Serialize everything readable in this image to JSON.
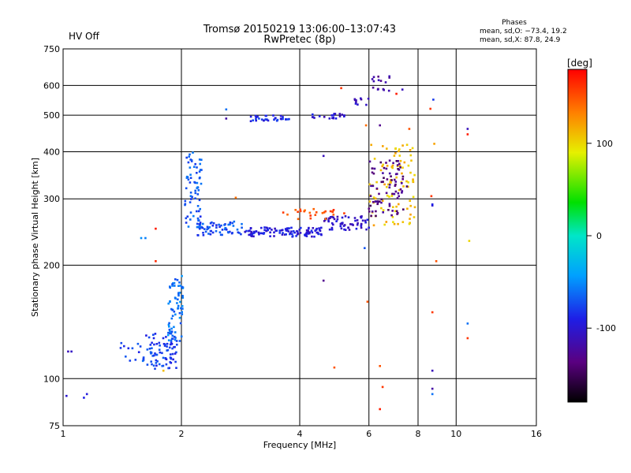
{
  "header": {
    "status": "HV Off",
    "status_color": "#cc0000",
    "title_line1": "Tromsø 20150219 13:06:00–13:07:43",
    "title_line2": "RwPretec (8p)"
  },
  "phase_info": {
    "heading": "Phases",
    "line_o": "mean, sd,O: −73.4, 19.2",
    "line_x": "mean, sd,X:  87.8, 24.9"
  },
  "chart_data": {
    "type": "scatter",
    "title": "",
    "xlabel": "Frequency [MHz]",
    "ylabel": "Stationary phase Virtual Height [km]",
    "x_scale": "log",
    "y_scale": "log",
    "xlim": [
      1,
      16
    ],
    "ylim": [
      75,
      750
    ],
    "x_ticks": [
      1,
      2,
      4,
      6,
      8,
      10,
      16
    ],
    "y_ticks": [
      75,
      100,
      200,
      300,
      400,
      500,
      600,
      750
    ],
    "x_gridlines": [
      2,
      4,
      6,
      8,
      10
    ],
    "y_gridlines": [
      100,
      200,
      300,
      400,
      500,
      600
    ],
    "grid": true,
    "colorbar": {
      "label": "[deg]",
      "min": -180,
      "max": 180,
      "ticks": [
        100,
        0,
        -100
      ],
      "legend_position": "right"
    },
    "clusters": [
      {
        "f": [
          1.6,
          1.95
        ],
        "h": [
          106,
          132
        ],
        "phase": -80,
        "count": 80
      },
      {
        "f": [
          1.85,
          2.02
        ],
        "h": [
          125,
          190
        ],
        "phase": -60,
        "count": 70
      },
      {
        "f": [
          1.4,
          1.62
        ],
        "h": [
          108,
          125
        ],
        "phase": -75,
        "count": 12
      },
      {
        "f": [
          2.04,
          2.25
        ],
        "h": [
          250,
          400
        ],
        "phase": -70,
        "count": 70
      },
      {
        "f": [
          2.2,
          2.9
        ],
        "h": [
          240,
          262
        ],
        "phase": -72,
        "count": 60
      },
      {
        "f": [
          2.9,
          4.6
        ],
        "h": [
          238,
          252
        ],
        "phase": -95,
        "count": 110
      },
      {
        "f": [
          4.6,
          6.0
        ],
        "h": [
          248,
          270
        ],
        "phase": -105,
        "count": 60
      },
      {
        "f": [
          3.6,
          5.2
        ],
        "h": [
          265,
          282
        ],
        "phase": 150,
        "count": 25
      },
      {
        "f": [
          3.0,
          3.8
        ],
        "h": [
          482,
          500
        ],
        "phase": -85,
        "count": 35
      },
      {
        "f": [
          4.2,
          5.2
        ],
        "h": [
          490,
          505
        ],
        "phase": -100,
        "count": 20
      },
      {
        "f": [
          5.5,
          6.0
        ],
        "h": [
          530,
          555
        ],
        "phase": -110,
        "count": 10
      },
      {
        "f": [
          6.0,
          7.9
        ],
        "h": [
          255,
          420
        ],
        "phase": 110,
        "count": 90
      },
      {
        "f": [
          6.0,
          7.5
        ],
        "h": [
          270,
          380
        ],
        "phase": -135,
        "count": 80
      },
      {
        "f": [
          6.1,
          6.8
        ],
        "h": [
          580,
          640
        ],
        "phase": -125,
        "count": 15
      }
    ],
    "points": [
      {
        "x": 1.03,
        "y": 118,
        "phase": -110
      },
      {
        "x": 1.05,
        "y": 118,
        "phase": -105
      },
      {
        "x": 1.02,
        "y": 90,
        "phase": -100
      },
      {
        "x": 1.15,
        "y": 91,
        "phase": -95
      },
      {
        "x": 1.13,
        "y": 89,
        "phase": -90
      },
      {
        "x": 1.62,
        "y": 236,
        "phase": -55
      },
      {
        "x": 1.58,
        "y": 236,
        "phase": -50
      },
      {
        "x": 1.72,
        "y": 250,
        "phase": 170
      },
      {
        "x": 1.72,
        "y": 205,
        "phase": 165
      },
      {
        "x": 1.8,
        "y": 105,
        "phase": 110
      },
      {
        "x": 2.6,
        "y": 518,
        "phase": -60
      },
      {
        "x": 2.6,
        "y": 490,
        "phase": -120
      },
      {
        "x": 2.75,
        "y": 302,
        "phase": 140
      },
      {
        "x": 4.6,
        "y": 390,
        "phase": -110
      },
      {
        "x": 4.6,
        "y": 182,
        "phase": -130
      },
      {
        "x": 4.9,
        "y": 107,
        "phase": 150
      },
      {
        "x": 5.1,
        "y": 590,
        "phase": 160
      },
      {
        "x": 5.85,
        "y": 222,
        "phase": -70
      },
      {
        "x": 5.9,
        "y": 470,
        "phase": 140
      },
      {
        "x": 5.95,
        "y": 160,
        "phase": 150
      },
      {
        "x": 6.4,
        "y": 470,
        "phase": -130
      },
      {
        "x": 6.4,
        "y": 108,
        "phase": 150
      },
      {
        "x": 6.4,
        "y": 83,
        "phase": 170
      },
      {
        "x": 6.5,
        "y": 95,
        "phase": 160
      },
      {
        "x": 7.05,
        "y": 570,
        "phase": 170
      },
      {
        "x": 7.3,
        "y": 585,
        "phase": -110
      },
      {
        "x": 7.6,
        "y": 460,
        "phase": 150
      },
      {
        "x": 8.6,
        "y": 520,
        "phase": 160
      },
      {
        "x": 8.65,
        "y": 305,
        "phase": 160
      },
      {
        "x": 8.7,
        "y": 288,
        "phase": -100
      },
      {
        "x": 8.7,
        "y": 290,
        "phase": -90
      },
      {
        "x": 8.75,
        "y": 550,
        "phase": -80
      },
      {
        "x": 8.8,
        "y": 420,
        "phase": 120
      },
      {
        "x": 8.9,
        "y": 205,
        "phase": 150
      },
      {
        "x": 8.7,
        "y": 150,
        "phase": 160
      },
      {
        "x": 8.7,
        "y": 105,
        "phase": -110
      },
      {
        "x": 8.7,
        "y": 94,
        "phase": -120
      },
      {
        "x": 8.7,
        "y": 91,
        "phase": -60
      },
      {
        "x": 10.7,
        "y": 460,
        "phase": -110
      },
      {
        "x": 10.7,
        "y": 445,
        "phase": 170
      },
      {
        "x": 10.8,
        "y": 232,
        "phase": 100
      },
      {
        "x": 10.7,
        "y": 140,
        "phase": -60
      },
      {
        "x": 10.7,
        "y": 128,
        "phase": 160
      }
    ]
  }
}
